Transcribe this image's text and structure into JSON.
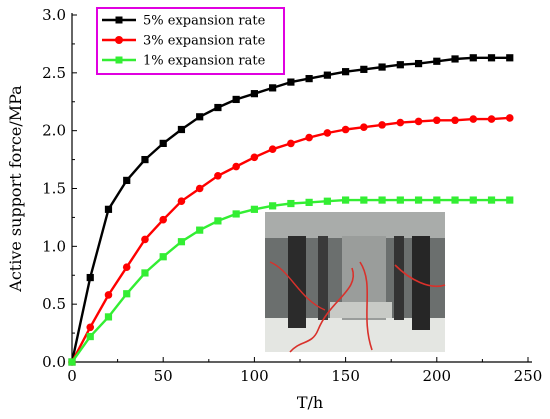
{
  "chart_data": {
    "type": "line",
    "xlabel": "T/h",
    "ylabel": "Active support force/MPa",
    "xlim": [
      0,
      250
    ],
    "ylim": [
      0,
      3.0
    ],
    "xticks": [
      "0",
      "50",
      "100",
      "150",
      "200",
      "250"
    ],
    "yticks": [
      "0.0",
      "0.5",
      "1.0",
      "1.5",
      "2.0",
      "2.5",
      "3.0"
    ],
    "grid": false,
    "legend_position": "top-left",
    "legend_border_color": "#e000e0",
    "x": [
      0,
      10,
      20,
      30,
      40,
      50,
      60,
      70,
      80,
      90,
      100,
      110,
      120,
      130,
      140,
      150,
      160,
      170,
      180,
      190,
      200,
      210,
      220,
      230,
      240
    ],
    "series": [
      {
        "name": "5% expansion rate",
        "color": "#000000",
        "marker": "square-filled",
        "values": [
          0.0,
          0.73,
          1.32,
          1.57,
          1.75,
          1.89,
          2.01,
          2.12,
          2.2,
          2.27,
          2.32,
          2.37,
          2.42,
          2.45,
          2.48,
          2.51,
          2.53,
          2.55,
          2.57,
          2.58,
          2.6,
          2.62,
          2.63,
          2.63,
          2.63
        ]
      },
      {
        "name": "3% expansion rate",
        "color": "#ff0000",
        "marker": "circle-filled",
        "values": [
          0.0,
          0.3,
          0.58,
          0.82,
          1.06,
          1.23,
          1.39,
          1.5,
          1.61,
          1.69,
          1.77,
          1.84,
          1.89,
          1.94,
          1.98,
          2.01,
          2.03,
          2.05,
          2.07,
          2.08,
          2.09,
          2.09,
          2.1,
          2.1,
          2.11
        ]
      },
      {
        "name": "1% expansion rate",
        "color": "#33ee33",
        "marker": "square-filled",
        "values": [
          0.0,
          0.22,
          0.39,
          0.59,
          0.77,
          0.91,
          1.04,
          1.14,
          1.22,
          1.28,
          1.32,
          1.35,
          1.37,
          1.38,
          1.39,
          1.4,
          1.4,
          1.4,
          1.4,
          1.4,
          1.4,
          1.4,
          1.4,
          1.4,
          1.4
        ]
      }
    ],
    "inset_image": "photo of expansion test apparatus"
  }
}
